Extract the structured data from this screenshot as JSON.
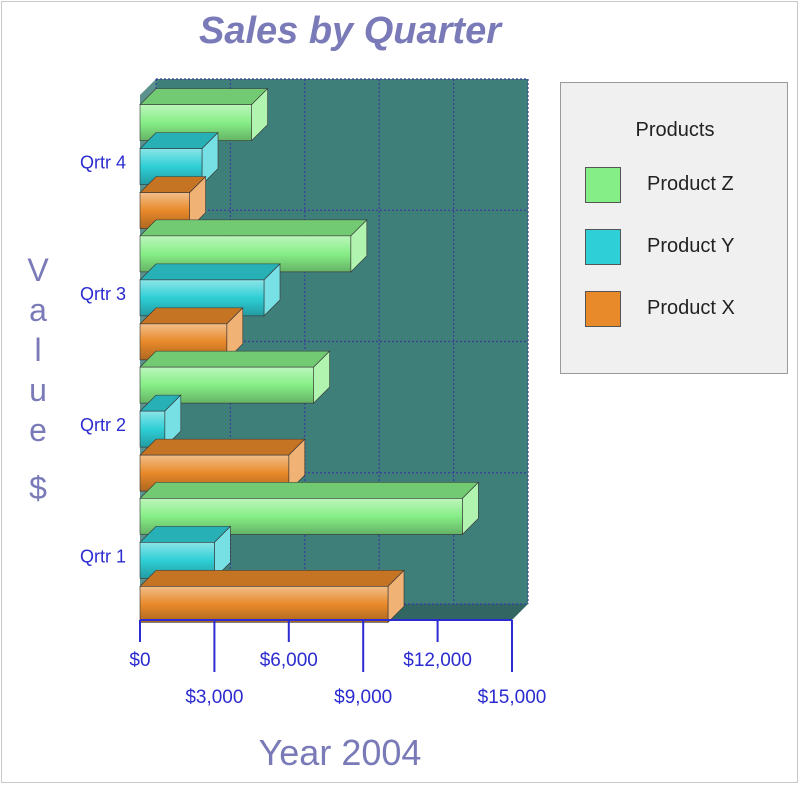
{
  "chart_data": {
    "type": "bar",
    "orientation": "horizontal",
    "title": "Sales by Quarter",
    "xlabel": "Year 2004",
    "ylabel": "Value $",
    "categories": [
      "Qrtr 1",
      "Qrtr 2",
      "Qrtr 3",
      "Qrtr 4"
    ],
    "series": [
      {
        "name": "Product X",
        "color": "#e8892a",
        "values": [
          10000,
          6000,
          3500,
          2000
        ]
      },
      {
        "name": "Product Y",
        "color": "#2ecfd6",
        "values": [
          3000,
          1000,
          5000,
          2500
        ]
      },
      {
        "name": "Product Z",
        "color": "#86ee86",
        "values": [
          13000,
          7000,
          8500,
          4500
        ]
      }
    ],
    "xlim": [
      0,
      15000
    ],
    "x_ticks": [
      "$0",
      "$3,000",
      "$6,000",
      "$9,000",
      "$12,000",
      "$15,000"
    ],
    "x_tick_values": [
      0,
      3000,
      6000,
      9000,
      12000,
      15000
    ],
    "grid": true,
    "plot_background": "#3f7f7a",
    "legend": {
      "title": "Products",
      "position": "right",
      "items": [
        "Product Z",
        "Product Y",
        "Product X"
      ]
    }
  }
}
